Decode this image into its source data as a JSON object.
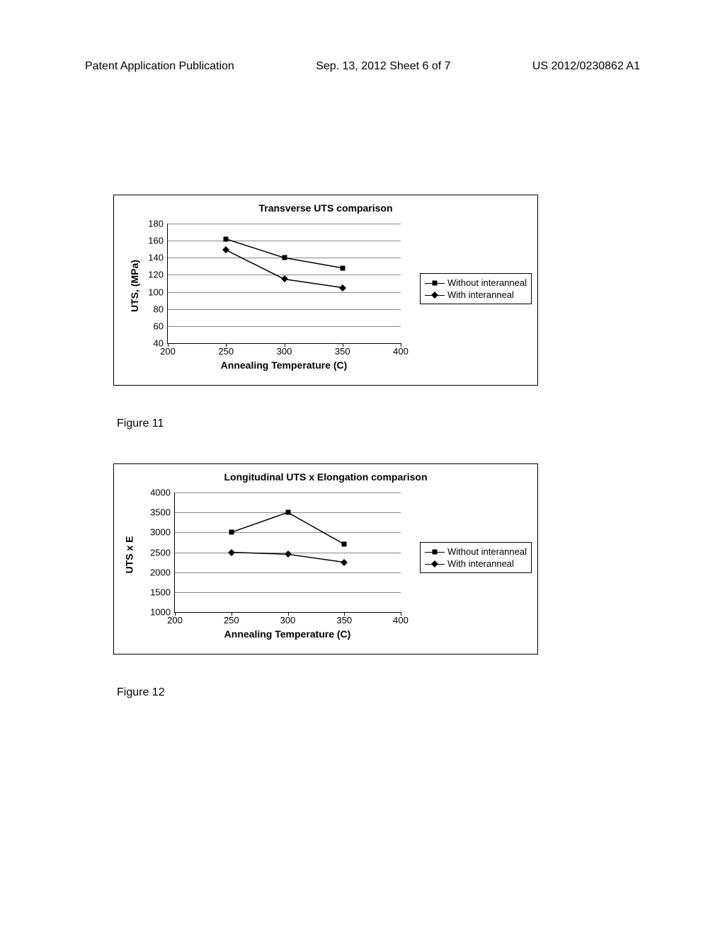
{
  "header": {
    "left": "Patent Application Publication",
    "center": "Sep. 13, 2012   Sheet 6 of 7",
    "right": "US 2012/0230862 A1"
  },
  "chart1": {
    "type": "line",
    "title": "Transverse UTS comparison",
    "xlabel": "Annealing Temperature (C)",
    "ylabel": "UTS, (MPa)",
    "ylim": [
      40,
      180
    ],
    "ytick_step": 20,
    "xlim": [
      200,
      400
    ],
    "xticks": [
      200,
      250,
      300,
      350,
      400
    ],
    "x_values": [
      250,
      300,
      350
    ],
    "series": [
      {
        "name": "Without interanneal",
        "marker": "square",
        "y_values": [
          162,
          140,
          128
        ]
      },
      {
        "name": "With interanneal",
        "marker": "diamond",
        "y_values": [
          149,
          115,
          105
        ]
      }
    ],
    "grid_color": "#888888",
    "line_color": "#000000",
    "background_color": "#ffffff"
  },
  "caption1": "Figure 11",
  "chart2": {
    "type": "line",
    "title": "Longitudinal UTS x Elongation comparison",
    "xlabel": "Annealing Temperature (C)",
    "ylabel": "UTS x E",
    "ylim": [
      1000,
      4000
    ],
    "ytick_step": 500,
    "xlim": [
      200,
      400
    ],
    "xticks": [
      200,
      250,
      300,
      350,
      400
    ],
    "x_values": [
      250,
      300,
      350
    ],
    "series": [
      {
        "name": "Without interanneal",
        "marker": "square",
        "y_values": [
          3000,
          3500,
          2700
        ]
      },
      {
        "name": "With interanneal",
        "marker": "diamond",
        "y_values": [
          2500,
          2450,
          2250
        ]
      }
    ],
    "grid_color": "#888888",
    "line_color": "#000000",
    "background_color": "#ffffff"
  },
  "caption2": "Figure 12"
}
